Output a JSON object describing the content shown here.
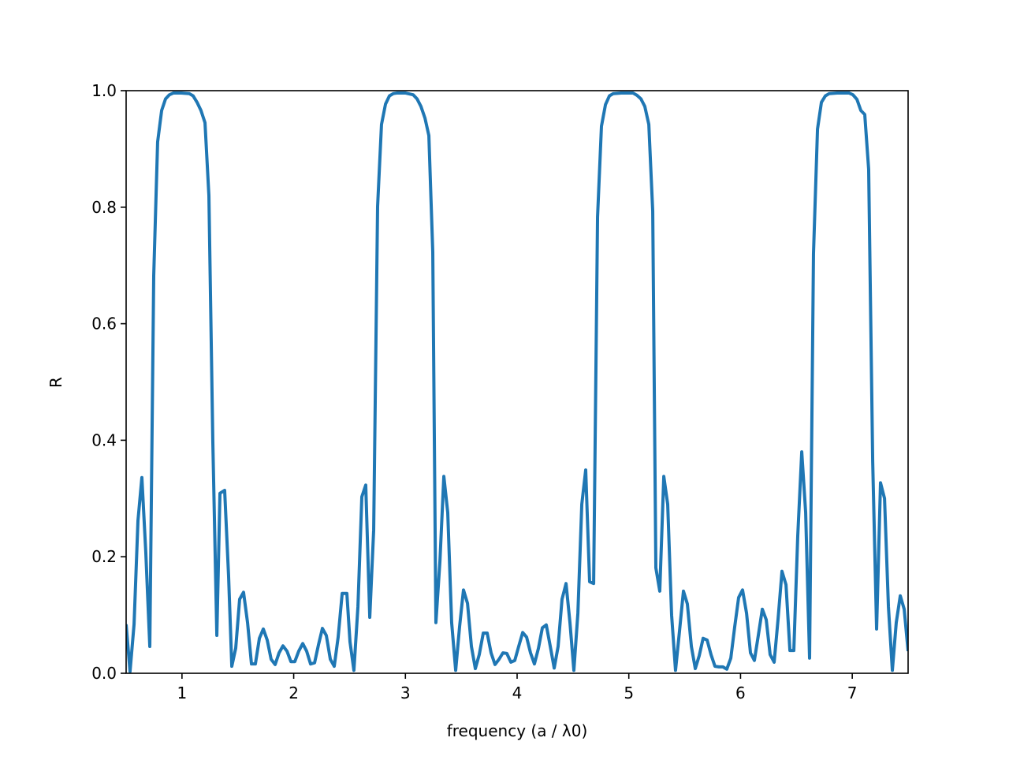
{
  "chart_data": {
    "type": "line",
    "xlabel": "frequency (a / λ0)",
    "ylabel": "R",
    "xlim": [
      0.5,
      7.5
    ],
    "ylim": [
      0,
      1
    ],
    "xticks": [
      1,
      2,
      3,
      4,
      5,
      6,
      7
    ],
    "yticks": [
      {
        "value": 0,
        "label": "0.0"
      },
      0.2,
      0.4,
      0.6,
      0.8,
      {
        "value": 1,
        "label": "1.0"
      }
    ],
    "grid": false,
    "series": [
      {
        "color": "#1f77b4",
        "x": [
          0.5,
          0.535,
          0.571,
          0.606,
          0.641,
          0.676,
          0.712,
          0.747,
          0.782,
          0.818,
          0.853,
          0.888,
          0.924,
          0.994,
          1.065,
          1.1,
          1.135,
          1.17,
          1.206,
          1.241,
          1.276,
          1.312,
          1.34,
          1.382,
          1.417,
          1.446,
          1.481,
          1.516,
          1.551,
          1.587,
          1.622,
          1.657,
          1.693,
          1.728,
          1.763,
          1.798,
          1.834,
          1.869,
          1.904,
          1.94,
          1.975,
          2.01,
          2.045,
          2.081,
          2.116,
          2.151,
          2.187,
          2.222,
          2.257,
          2.292,
          2.328,
          2.363,
          2.398,
          2.434,
          2.476,
          2.504,
          2.539,
          2.575,
          2.61,
          2.645,
          2.681,
          2.716,
          2.751,
          2.786,
          2.822,
          2.857,
          2.892,
          2.928,
          2.998,
          3.069,
          3.104,
          3.139,
          3.175,
          3.21,
          3.245,
          3.273,
          3.309,
          3.344,
          3.379,
          3.414,
          3.45,
          3.485,
          3.52,
          3.556,
          3.591,
          3.626,
          3.661,
          3.697,
          3.732,
          3.767,
          3.802,
          3.838,
          3.873,
          3.908,
          3.944,
          3.979,
          4.014,
          4.05,
          4.085,
          4.12,
          4.155,
          4.191,
          4.226,
          4.261,
          4.297,
          4.332,
          4.367,
          4.402,
          4.438,
          4.473,
          4.508,
          4.544,
          4.579,
          4.614,
          4.649,
          4.685,
          4.72,
          4.755,
          4.791,
          4.826,
          4.861,
          4.932,
          5.037,
          5.073,
          5.108,
          5.143,
          5.179,
          5.214,
          5.242,
          5.277,
          5.313,
          5.348,
          5.383,
          5.418,
          5.454,
          5.489,
          5.524,
          5.56,
          5.595,
          5.63,
          5.665,
          5.701,
          5.736,
          5.771,
          5.807,
          5.842,
          5.877,
          5.913,
          5.948,
          5.983,
          6.018,
          6.054,
          6.089,
          6.124,
          6.16,
          6.195,
          6.23,
          6.265,
          6.301,
          6.336,
          6.371,
          6.407,
          6.442,
          6.477,
          6.512,
          6.548,
          6.583,
          6.618,
          6.653,
          6.689,
          6.724,
          6.759,
          6.794,
          6.865,
          6.971,
          7.006,
          7.042,
          7.077,
          7.112,
          7.147,
          7.183,
          7.218,
          7.253,
          7.289,
          7.324,
          7.359,
          7.394,
          7.43,
          7.465,
          7.5
        ],
        "values": [
          0.084,
          0.003,
          0.084,
          0.262,
          0.336,
          0.208,
          0.046,
          0.682,
          0.912,
          0.966,
          0.986,
          0.993,
          0.996,
          0.996,
          0.995,
          0.991,
          0.98,
          0.966,
          0.945,
          0.82,
          0.398,
          0.065,
          0.309,
          0.314,
          0.168,
          0.012,
          0.043,
          0.127,
          0.139,
          0.087,
          0.016,
          0.016,
          0.06,
          0.076,
          0.057,
          0.024,
          0.015,
          0.035,
          0.047,
          0.038,
          0.02,
          0.02,
          0.038,
          0.051,
          0.038,
          0.016,
          0.018,
          0.049,
          0.077,
          0.065,
          0.024,
          0.012,
          0.062,
          0.137,
          0.137,
          0.054,
          0.005,
          0.114,
          0.303,
          0.323,
          0.096,
          0.246,
          0.801,
          0.942,
          0.977,
          0.991,
          0.995,
          0.996,
          0.996,
          0.993,
          0.986,
          0.973,
          0.953,
          0.923,
          0.723,
          0.087,
          0.192,
          0.338,
          0.276,
          0.087,
          0.005,
          0.08,
          0.143,
          0.12,
          0.046,
          0.008,
          0.032,
          0.069,
          0.069,
          0.035,
          0.015,
          0.024,
          0.035,
          0.034,
          0.019,
          0.022,
          0.046,
          0.07,
          0.062,
          0.035,
          0.016,
          0.043,
          0.078,
          0.083,
          0.046,
          0.009,
          0.046,
          0.127,
          0.154,
          0.087,
          0.005,
          0.103,
          0.29,
          0.349,
          0.157,
          0.154,
          0.783,
          0.939,
          0.976,
          0.991,
          0.995,
          0.996,
          0.996,
          0.992,
          0.986,
          0.973,
          0.942,
          0.793,
          0.181,
          0.141,
          0.338,
          0.29,
          0.1,
          0.005,
          0.073,
          0.141,
          0.119,
          0.046,
          0.008,
          0.03,
          0.06,
          0.057,
          0.032,
          0.012,
          0.011,
          0.011,
          0.007,
          0.026,
          0.08,
          0.13,
          0.143,
          0.103,
          0.035,
          0.022,
          0.066,
          0.11,
          0.092,
          0.032,
          0.019,
          0.093,
          0.175,
          0.152,
          0.039,
          0.039,
          0.235,
          0.38,
          0.276,
          0.026,
          0.72,
          0.934,
          0.98,
          0.991,
          0.995,
          0.996,
          0.996,
          0.993,
          0.985,
          0.966,
          0.959,
          0.865,
          0.364,
          0.076,
          0.327,
          0.3,
          0.114,
          0.005,
          0.087,
          0.133,
          0.11,
          0.038
        ]
      }
    ]
  }
}
